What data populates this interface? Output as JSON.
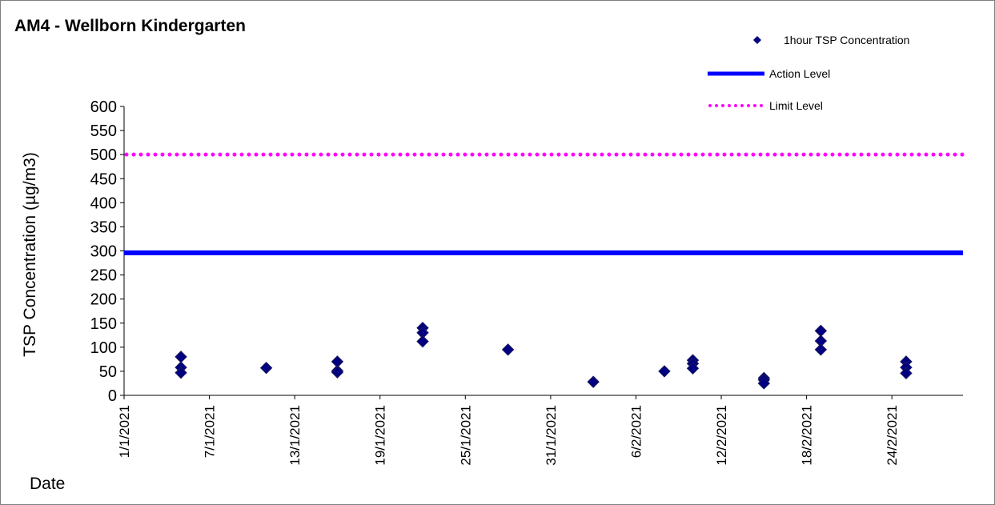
{
  "chart_data": {
    "type": "scatter",
    "title": "AM4 - Wellborn Kindergarten",
    "xlabel": "Date",
    "ylabel": "TSP Concentration (µg/m3)",
    "ylim": [
      0,
      600
    ],
    "yticks": [
      0,
      50,
      100,
      150,
      200,
      250,
      300,
      350,
      400,
      450,
      500,
      550,
      600
    ],
    "xlim": [
      "1/1/2021",
      "1/3/2021"
    ],
    "xticks": [
      "1/1/2021",
      "7/1/2021",
      "13/1/2021",
      "19/1/2021",
      "25/1/2021",
      "31/1/2021",
      "6/2/2021",
      "12/2/2021",
      "18/2/2021",
      "24/2/2021"
    ],
    "grid": false,
    "legend_position": "top-right",
    "series": [
      {
        "name": "1hour TSP Concentration",
        "kind": "scatter",
        "marker": "diamond",
        "color": "#000080",
        "points": [
          {
            "x": "5/1/2021",
            "y": 80
          },
          {
            "x": "5/1/2021",
            "y": 58
          },
          {
            "x": "5/1/2021",
            "y": 47
          },
          {
            "x": "11/1/2021",
            "y": 57
          },
          {
            "x": "16/1/2021",
            "y": 70
          },
          {
            "x": "16/1/2021",
            "y": 51
          },
          {
            "x": "16/1/2021",
            "y": 48
          },
          {
            "x": "22/1/2021",
            "y": 140
          },
          {
            "x": "22/1/2021",
            "y": 130
          },
          {
            "x": "22/1/2021",
            "y": 112
          },
          {
            "x": "28/1/2021",
            "y": 95
          },
          {
            "x": "3/2/2021",
            "y": 28
          },
          {
            "x": "8/2/2021",
            "y": 50
          },
          {
            "x": "10/2/2021",
            "y": 73
          },
          {
            "x": "10/2/2021",
            "y": 66
          },
          {
            "x": "10/2/2021",
            "y": 56
          },
          {
            "x": "15/2/2021",
            "y": 36
          },
          {
            "x": "15/2/2021",
            "y": 32
          },
          {
            "x": "15/2/2021",
            "y": 25
          },
          {
            "x": "19/2/2021",
            "y": 134
          },
          {
            "x": "19/2/2021",
            "y": 113
          },
          {
            "x": "19/2/2021",
            "y": 95
          },
          {
            "x": "25/2/2021",
            "y": 70
          },
          {
            "x": "25/2/2021",
            "y": 58
          },
          {
            "x": "25/2/2021",
            "y": 46
          }
        ]
      },
      {
        "name": "Action Level",
        "kind": "hline",
        "y": 296,
        "style": "solid",
        "color": "#0000ff"
      },
      {
        "name": "Limit Level",
        "kind": "hline",
        "y": 500,
        "style": "dotted",
        "color": "#ff00ff"
      }
    ]
  }
}
